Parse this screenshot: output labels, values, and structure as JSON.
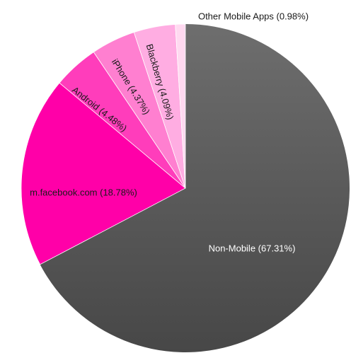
{
  "chart_data": {
    "type": "pie",
    "title": "",
    "slices": [
      {
        "label": "Non-Mobile (67.31%)",
        "value": 67.31,
        "color": "#5a5a5a"
      },
      {
        "label": "m.facebook.com (18.78%)",
        "value": 18.78,
        "color": "#ff00a8"
      },
      {
        "label": "Android (4.48%)",
        "value": 4.48,
        "color": "#ff3dbb"
      },
      {
        "label": "iPhone (4.37%)",
        "value": 4.37,
        "color": "#ff7fd0"
      },
      {
        "label": "Blackberry (4.09%)",
        "value": 4.09,
        "color": "#ffade2"
      },
      {
        "label": "Other Mobile Apps (0.98%)",
        "value": 0.98,
        "color": "#ffd9f0"
      }
    ]
  }
}
